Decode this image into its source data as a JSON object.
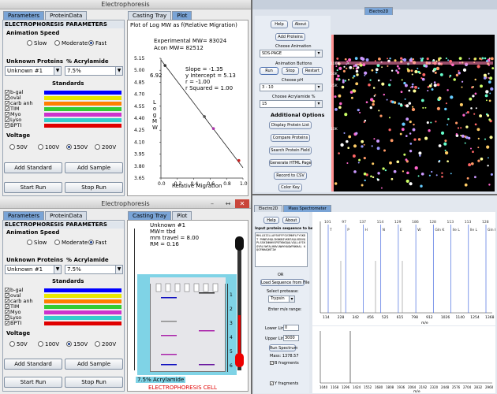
{
  "top_window": {
    "title": "Electrophoresis",
    "tabs": [
      "Parameters",
      "ProteinData"
    ],
    "right_tabs": [
      "Casting Tray",
      "Plot"
    ],
    "section": "ELECTROPHORESIS PARAMETERS",
    "speed_label": "Animation Speed",
    "speeds": [
      "Slow",
      "Moderate",
      "Fast"
    ],
    "unknown_label": "Unknown Proteins",
    "acryl_label": "% Acrylamide",
    "unknown_value": "Unknown #1",
    "acryl_value": "7.5%",
    "standards_label": "Standards",
    "standards": [
      {
        "name": "b-gal",
        "color": "#0000ff"
      },
      {
        "name": "oval",
        "color": "#e8e800"
      },
      {
        "name": "carb anh",
        "color": "#ff7f00"
      },
      {
        "name": "TIM",
        "color": "#33cc33"
      },
      {
        "name": "Myo",
        "color": "#cc33cc"
      },
      {
        "name": "Lyso",
        "color": "#33cccc"
      },
      {
        "name": "BPTI",
        "color": "#e00000"
      }
    ],
    "voltage_label": "Voltage",
    "voltages": [
      "50V",
      "100V",
      "150V",
      "200V"
    ],
    "add_standard": "Add Standard",
    "add_sample": "Add Sample",
    "start_run": "Start Run",
    "stop_run": "Stop Run",
    "plot_title": "Plot of Log MW as f(Relative Migration)",
    "exp_mw": "Experimental MW= 83024",
    "acon_mw": "Acon MW= 82512",
    "slope": "Slope = -1.35",
    "intercept": "y Intercept = 5.13",
    "r": "r = -1.00",
    "rsq": "r Squared = 1.00",
    "ylabel": "Log MW",
    "xlabel": "Relative Migration",
    "point_label": "6.92"
  },
  "chart_data": {
    "type": "scatter",
    "title": "Plot of Log MW as f(Relative Migration)",
    "xlabel": "Relative Migration",
    "ylabel": "Log MW",
    "x_ticks": [
      "0.0",
      "0.2",
      "0.4",
      "0.6",
      "0.8",
      "1.0"
    ],
    "y_ticks": [
      "5.15",
      "5.00",
      "4.85",
      "4.70",
      "4.55",
      "4.40",
      "4.25",
      "4.10",
      "3.95",
      "3.80",
      "3.65"
    ],
    "xlim": [
      0,
      1.0
    ],
    "ylim": [
      3.65,
      5.15
    ],
    "points": [
      {
        "x": 0.05,
        "y": 5.06,
        "color": "#333333"
      },
      {
        "x": 0.53,
        "y": 4.42,
        "color": "#555555"
      },
      {
        "x": 0.64,
        "y": 4.27,
        "color": "#aa33aa"
      },
      {
        "x": 0.95,
        "y": 3.87,
        "color": "#cc2222"
      }
    ],
    "fit": {
      "slope": -1.35,
      "intercept": 5.13
    }
  },
  "bottom_window": {
    "title": "Electrophoresis",
    "tabs": [
      "Parameters",
      "ProteinData"
    ],
    "right_tabs": [
      "Casting Tray",
      "Plot"
    ],
    "section": "ELECTROPHORESIS PARAMETERS",
    "speed_label": "Animation Speed",
    "speeds": [
      "Slow",
      "Moderate",
      "Fast"
    ],
    "unknown_label": "Unknown Proteins",
    "acryl_label": "% Acrylamide",
    "unknown_value": "Unknown #1",
    "acryl_value": "7.5%",
    "standards_label": "Standards",
    "standards": [
      {
        "name": "b-gal",
        "color": "#0000ff"
      },
      {
        "name": "oval",
        "color": "#e8e800"
      },
      {
        "name": "carb anh",
        "color": "#ff7f00"
      },
      {
        "name": "TIM",
        "color": "#33cc33"
      },
      {
        "name": "Myo",
        "color": "#cc33cc"
      },
      {
        "name": "Lyso",
        "color": "#33cccc"
      },
      {
        "name": "BPTI",
        "color": "#e00000"
      }
    ],
    "voltage_label": "Voltage",
    "voltages": [
      "50V",
      "100V",
      "150V",
      "200V"
    ],
    "add_standard": "Add Standard",
    "add_sample": "Add Sample",
    "start_run": "Start Run",
    "stop_run": "Stop Run",
    "info": [
      "Unknown #1",
      "MW= tbd",
      "mm travel = 8.00",
      "RM = 0.16"
    ],
    "gel_label": "7.5% Acrylamide",
    "cell_label": "ELECTROPHORESIS CELL",
    "ruler": [
      "1",
      "2",
      "3",
      "4",
      "5",
      "6"
    ]
  },
  "electro2d": {
    "title": "Electro2D",
    "help": "Help",
    "about": "About",
    "add_proteins": "Add Proteins",
    "choose_anim": "Choose Animation",
    "anim_value": "SDS-PAGE",
    "anim_buttons_label": "Animation Buttons",
    "run": "Run",
    "stop": "Stop",
    "restart": "Restart",
    "choose_ph": "Choose pH",
    "ph_value": "3 - 10",
    "choose_acryl": "Choose Acrylamide %",
    "acryl_value": "15",
    "additional": "Additional Options",
    "options": [
      "Display Protein List",
      "Compare Proteins",
      "Search Protein Field",
      "Generate HTML Page",
      "Record to CSV",
      "Color Key"
    ],
    "ph_ticks": [
      "3",
      "4",
      "5",
      "6",
      "7",
      "8",
      "9",
      "10"
    ],
    "mw_labels": [
      "100K",
      "50K",
      "25K",
      "10K"
    ]
  },
  "ms": {
    "tabs": [
      "Electro2D",
      "Mass Spectrometer"
    ],
    "help": "Help",
    "about": "About",
    "input_label": "Input protein sequence to be analyzed:",
    "sequence": "MHLLDIILLAFSKFFFGVIMNFLFYSKDT PHNEVHQLIKNKNIVKNTAQLVDDVQ PLSSHINNHVSPDTKNGQALVQLL4FIK GVRLYWFALHNVLNWYHAGWFNKHAL KQGFNHAQNTIW",
    "or": "OR",
    "load_btn": "Load Sequence from File",
    "protease_label": "Select protease:",
    "protease_value": "Trypsin",
    "enter_range": "Enter m/e range:",
    "lower_label": "Lower Limit:",
    "lower_value": "0",
    "upper_label": "Upper Limit:",
    "upper_value": "3000",
    "run_btn": "Run Spectrum",
    "mass": "Mass: 1378.57",
    "b_frag": "B fragments",
    "y_frag": "Y fragments",
    "top_peaks": [
      "T",
      "P",
      "H",
      "N",
      "E",
      "W",
      "Gln K",
      "Ile L",
      "Ile L",
      "Gln K"
    ],
    "top_vals": [
      "101",
      "97",
      "137",
      "114",
      "129",
      "186",
      "128",
      "113",
      "113",
      "128"
    ],
    "top_x": [
      "16",
      "60",
      "170",
      "260",
      "350",
      "455",
      "526",
      "600",
      "680",
      "780"
    ],
    "top_axis": [
      "114",
      "228",
      "342",
      "456",
      "525",
      "615",
      "798",
      "912",
      "1026",
      "1140",
      "1254",
      "1368"
    ],
    "bottom_axis": [
      "1040",
      "1168",
      "1296",
      "1424",
      "1552",
      "1680",
      "1808",
      "1936",
      "2064",
      "2192",
      "2320",
      "2448",
      "2576",
      "2704",
      "2832",
      "2960"
    ],
    "xunit": "m/e"
  }
}
